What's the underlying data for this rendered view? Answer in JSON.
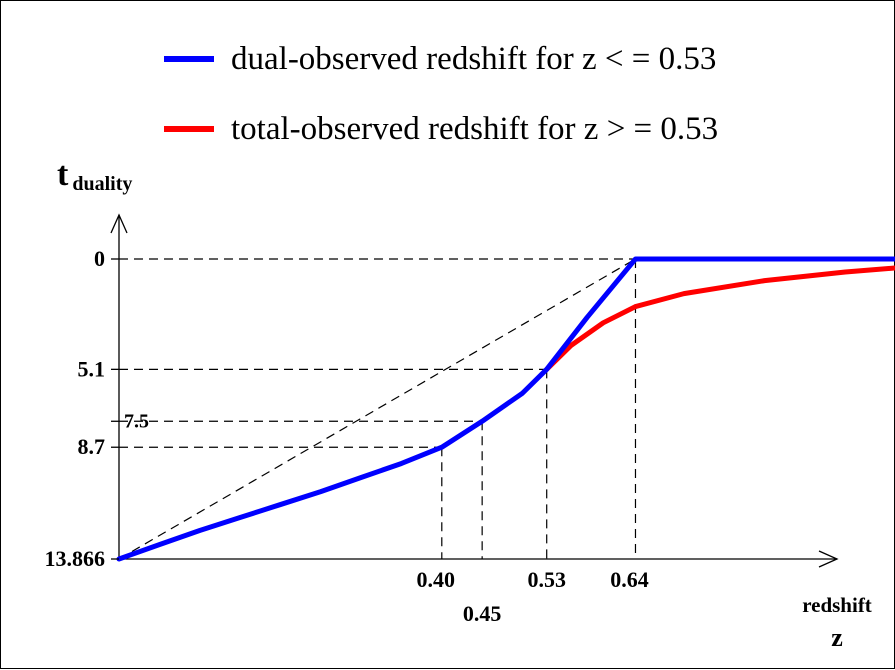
{
  "chart_data": {
    "type": "line",
    "title": "",
    "ylabel": {
      "main": "t",
      "sub": "duality"
    },
    "xlabel": {
      "line1": "redshift",
      "line2": "z"
    },
    "xlim": [
      0,
      1.0
    ],
    "ylim": [
      13.866,
      0
    ],
    "legend_position": "top-right",
    "series": [
      {
        "name": "dual-observed redshift for z < = 0.53",
        "color": "#0000ff",
        "x": [
          0,
          0.05,
          0.1,
          0.15,
          0.2,
          0.25,
          0.3,
          0.35,
          0.4,
          0.45,
          0.5,
          0.53,
          0.58,
          0.64,
          1.0
        ],
        "y": [
          13.866,
          13.2,
          12.55,
          11.95,
          11.35,
          10.75,
          10.1,
          9.45,
          8.7,
          7.5,
          6.2,
          5.1,
          2.7,
          0,
          0
        ]
      },
      {
        "name": "total-observed redshift for z > = 0.53",
        "color": "#ff0000",
        "x": [
          0.53,
          0.56,
          0.6,
          0.64,
          0.7,
          0.8,
          0.9,
          1.0
        ],
        "y": [
          5.1,
          4.0,
          2.95,
          2.2,
          1.6,
          1.0,
          0.6,
          0.3
        ]
      }
    ],
    "y_ticks": [
      {
        "value": 0,
        "label": "0"
      },
      {
        "value": 5.1,
        "label": "5.1"
      },
      {
        "value": 8.7,
        "label": "8.7"
      },
      {
        "value": 13.866,
        "label": "13.866"
      }
    ],
    "y_annotation": {
      "value": 7.5,
      "label": "7.5"
    },
    "x_ticks": [
      {
        "value": 0.4,
        "label": "0.40"
      },
      {
        "value": 0.45,
        "label": "0.45"
      },
      {
        "value": 0.53,
        "label": "0.53"
      },
      {
        "value": 0.64,
        "label": "0.64"
      }
    ],
    "guide_points": [
      {
        "x": 0.4,
        "y": 8.7
      },
      {
        "x": 0.45,
        "y": 7.5
      },
      {
        "x": 0.53,
        "y": 5.1
      },
      {
        "x": 0.64,
        "y": 0
      }
    ],
    "diagonal_reference": {
      "from": [
        0,
        13.866
      ],
      "to": [
        0.64,
        0
      ]
    }
  }
}
